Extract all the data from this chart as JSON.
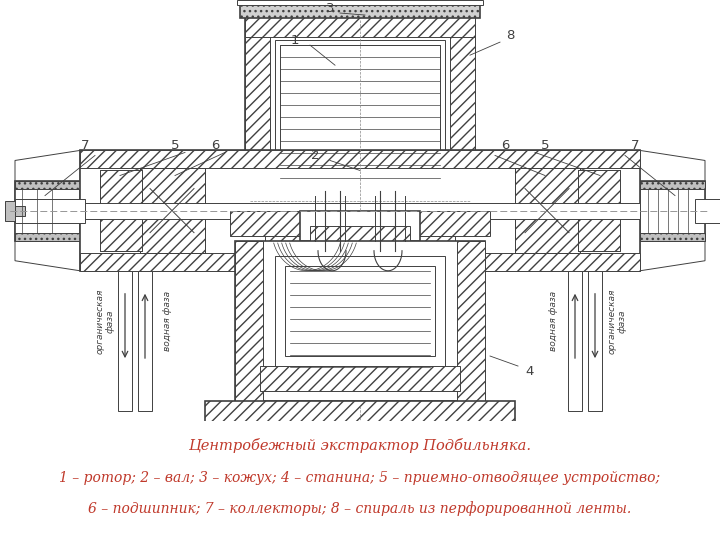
{
  "title_line1": "Центробежный экстрактор Подбильняка.",
  "title_line2": "1 – ротор; 2 – вал; 3 – кожух; 4 – станина; 5 – приемно-отводящее устройство;",
  "title_line3": "6 – подшипник; 7 – коллекторы; 8 – спираль из перфорированной ленты.",
  "text_color": "#c0392b",
  "bg_color": "#ffffff",
  "fig_width": 7.2,
  "fig_height": 5.4,
  "caption_fontsize": 10.5
}
